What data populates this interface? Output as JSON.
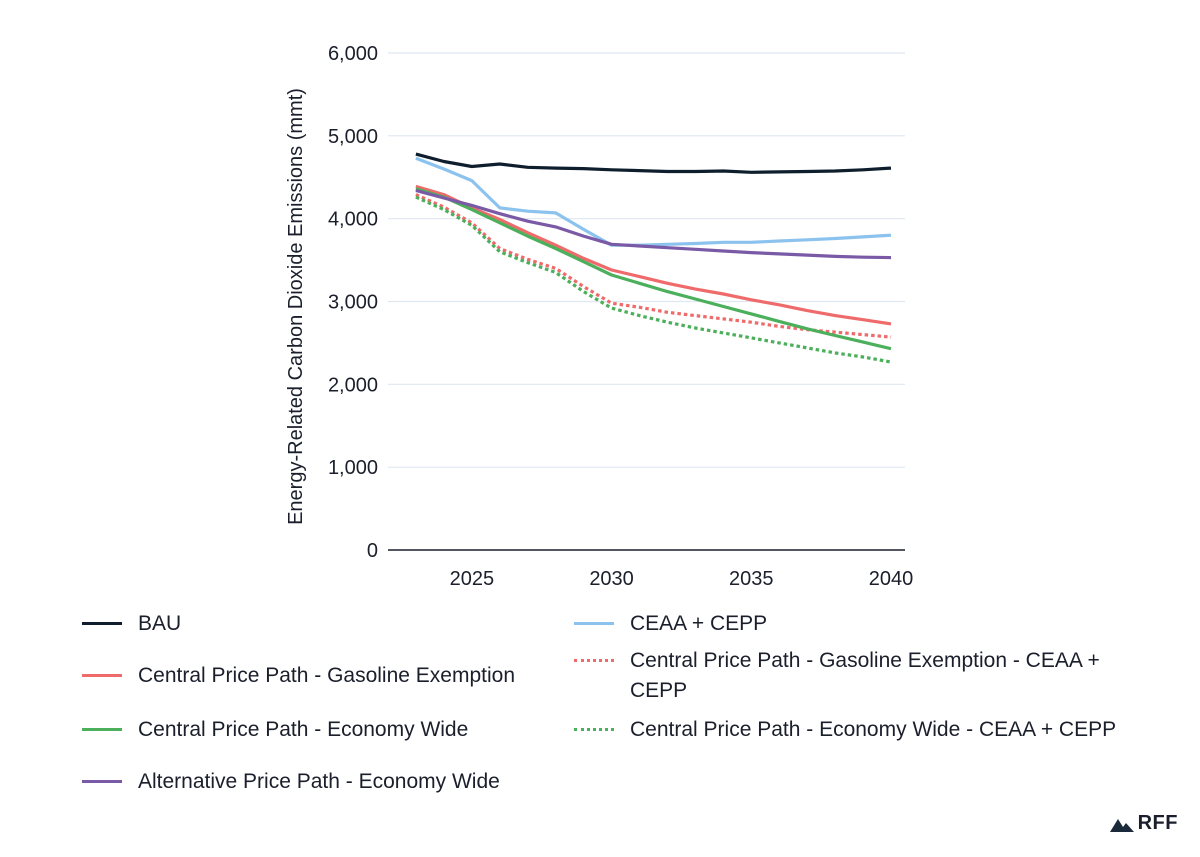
{
  "chart_data": {
    "type": "line",
    "ylabel": "Energy-Related Carbon Dioxide Emissions (mmt)",
    "xlabel": "",
    "ylim": [
      0,
      6000
    ],
    "xlim": [
      2022,
      2040.5
    ],
    "yticks": [
      0,
      1000,
      2000,
      3000,
      4000,
      5000,
      6000
    ],
    "ytick_labels": [
      "0",
      "1,000",
      "2,000",
      "3,000",
      "4,000",
      "5,000",
      "6,000"
    ],
    "xticks": [
      2025,
      2030,
      2035,
      2040
    ],
    "xtick_labels": [
      "2025",
      "2030",
      "2035",
      "2040"
    ],
    "grid": "horizontal",
    "legend_position": "bottom",
    "x": [
      2023,
      2024,
      2025,
      2026,
      2027,
      2028,
      2029,
      2030,
      2031,
      2032,
      2033,
      2034,
      2035,
      2036,
      2037,
      2038,
      2039,
      2040
    ],
    "series": [
      {
        "name": "BAU",
        "color": "#0f1e2d",
        "dash": "solid",
        "values": [
          4780,
          4690,
          4630,
          4660,
          4620,
          4610,
          4605,
          4590,
          4580,
          4570,
          4570,
          4575,
          4560,
          4565,
          4570,
          4575,
          4590,
          4610
        ]
      },
      {
        "name": "CEAA + CEPP",
        "color": "#8cc3ee",
        "dash": "solid",
        "values": [
          4730,
          4600,
          4460,
          4130,
          4090,
          4070,
          3870,
          3680,
          3680,
          3690,
          3700,
          3715,
          3715,
          3730,
          3745,
          3760,
          3780,
          3800
        ]
      },
      {
        "name": "Central Price Path - Gasoline Exemption",
        "color": "#ef6b6b",
        "dash": "solid",
        "values": [
          4390,
          4290,
          4130,
          3990,
          3830,
          3680,
          3520,
          3380,
          3300,
          3220,
          3150,
          3090,
          3020,
          2960,
          2890,
          2830,
          2780,
          2730
        ]
      },
      {
        "name": "Central Price Path - Gasoline Exemption - CEAA + CEPP",
        "color": "#ef6b6b",
        "dash": "dotted",
        "values": [
          4290,
          4140,
          3950,
          3640,
          3510,
          3400,
          3180,
          2980,
          2930,
          2870,
          2830,
          2790,
          2750,
          2700,
          2660,
          2630,
          2600,
          2570
        ]
      },
      {
        "name": "Central Price Path - Economy Wide",
        "color": "#4caf5b",
        "dash": "solid",
        "values": [
          4360,
          4260,
          4110,
          3950,
          3790,
          3640,
          3480,
          3320,
          3220,
          3120,
          3030,
          2940,
          2850,
          2760,
          2670,
          2590,
          2510,
          2430
        ]
      },
      {
        "name": "Central Price Path - Economy Wide - CEAA + CEPP",
        "color": "#4caf5b",
        "dash": "dotted",
        "values": [
          4260,
          4110,
          3920,
          3600,
          3470,
          3350,
          3120,
          2920,
          2830,
          2750,
          2680,
          2620,
          2560,
          2500,
          2440,
          2380,
          2330,
          2270
        ]
      },
      {
        "name": "Alternative Price Path - Economy Wide",
        "color": "#7a5aa6",
        "dash": "solid",
        "values": [
          4340,
          4250,
          4160,
          4060,
          3970,
          3900,
          3790,
          3690,
          3670,
          3650,
          3630,
          3610,
          3590,
          3575,
          3560,
          3545,
          3535,
          3530
        ]
      }
    ]
  },
  "brand": {
    "text": "RFF",
    "color": "#1a2a3a"
  }
}
